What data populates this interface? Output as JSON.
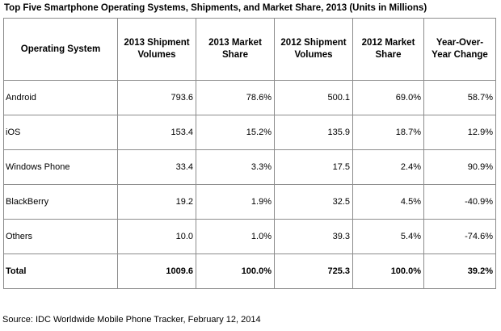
{
  "chart_data": {
    "type": "table",
    "title": "Top Five Smartphone Operating Systems, Shipments, and Market Share, 2013 (Units in Millions)",
    "columns": [
      "Operating System",
      "2013 Shipment Volumes",
      "2013 Market Share",
      "2012 Shipment Volumes",
      "2012 Market Share",
      "Year-Over-Year Change"
    ],
    "rows": [
      [
        "Android",
        "793.6",
        "78.6%",
        "500.1",
        "69.0%",
        "58.7%"
      ],
      [
        "iOS",
        "153.4",
        "15.2%",
        "135.9",
        "18.7%",
        "12.9%"
      ],
      [
        "Windows Phone",
        "33.4",
        "3.3%",
        "17.5",
        "2.4%",
        "90.9%"
      ],
      [
        "BlackBerry",
        "19.2",
        "1.9%",
        "32.5",
        "4.5%",
        "-40.9%"
      ],
      [
        "Others",
        "10.0",
        "1.0%",
        "39.3",
        "5.4%",
        "-74.6%"
      ]
    ],
    "total": [
      "Total",
      "1009.6",
      "100.0%",
      "725.3",
      "100.0%",
      "39.2%"
    ],
    "source": "Source: IDC Worldwide Mobile Phone Tracker, February 12, 2014"
  }
}
